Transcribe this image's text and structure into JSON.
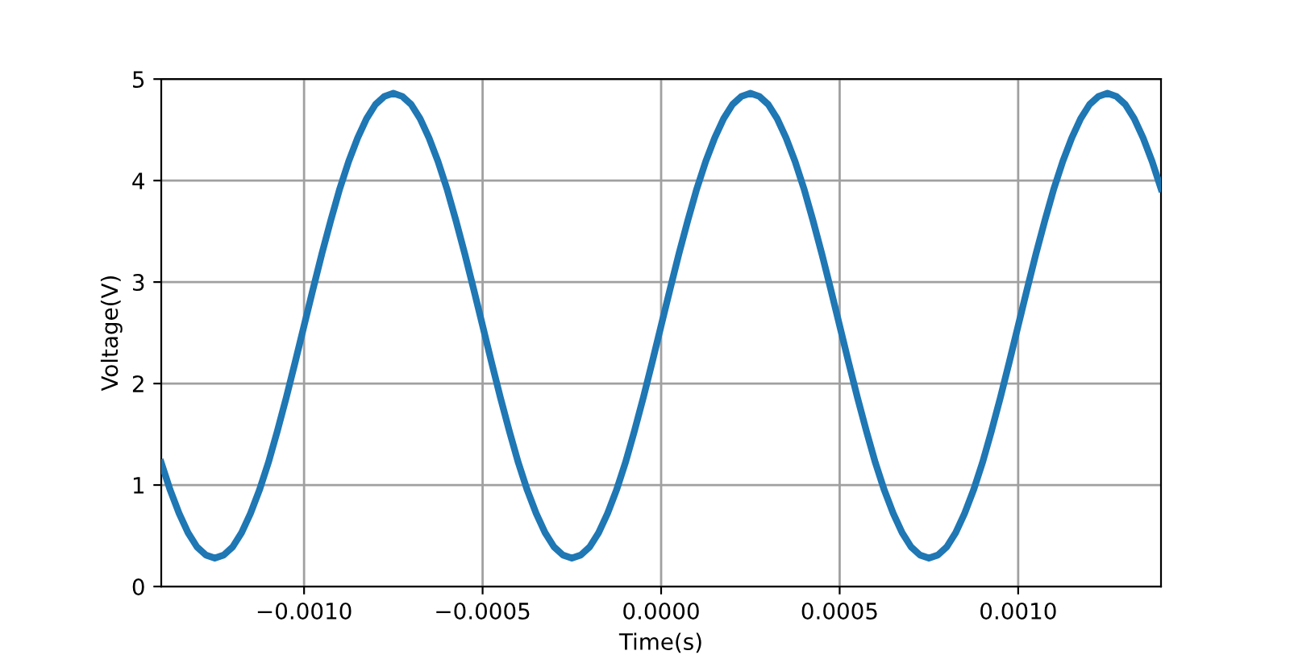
{
  "chart_data": {
    "type": "line",
    "xlabel": "Time(s)",
    "ylabel": "Voltage(V)",
    "xlim": [
      -0.0014,
      0.0014
    ],
    "ylim": [
      0,
      5
    ],
    "xticks": [
      {
        "value": -0.001,
        "label": "−0.0010"
      },
      {
        "value": -0.0005,
        "label": "−0.0005"
      },
      {
        "value": 0,
        "label": "0.0000"
      },
      {
        "value": 0.0005,
        "label": "0.0005"
      },
      {
        "value": 0.001,
        "label": "0.0010"
      }
    ],
    "yticks": [
      0,
      1,
      2,
      3,
      4,
      5
    ],
    "grid": true,
    "line_style": "solid",
    "x": [
      -0.0014,
      -0.001375,
      -0.00135,
      -0.001325,
      -0.0013,
      -0.001275,
      -0.00125,
      -0.001225,
      -0.0012,
      -0.001175,
      -0.00115,
      -0.001125,
      -0.0011,
      -0.001075,
      -0.00105,
      -0.001025,
      -0.001,
      -0.000975,
      -0.00095,
      -0.000925,
      -0.0009,
      -0.000875,
      -0.00085,
      -0.000825,
      -0.0008,
      -0.000775,
      -0.00075,
      -0.000725,
      -0.0007,
      -0.000675,
      -0.00065,
      -0.000625,
      -0.0006,
      -0.000575,
      -0.00055,
      -0.000525,
      -0.0005,
      -0.000475,
      -0.00045,
      -0.000425,
      -0.0004,
      -0.000375,
      -0.00035,
      -0.000325,
      -0.0003,
      -0.000275,
      -0.00025,
      -0.000225,
      -0.0002,
      -0.000175,
      -0.00015,
      -0.000125,
      -0.0001,
      -7.5e-05,
      -5e-05,
      -2.5e-05,
      0,
      2.5e-05,
      5e-05,
      7.5e-05,
      0.0001,
      0.000125,
      0.00015,
      0.000175,
      0.0002,
      0.000225,
      0.00025,
      0.000275,
      0.0003,
      0.000325,
      0.00035,
      0.000375,
      0.0004,
      0.000425,
      0.00045,
      0.000475,
      0.0005,
      0.000525,
      0.00055,
      0.000575,
      0.0006,
      0.000625,
      0.00065,
      0.000675,
      0.0007,
      0.000725,
      0.00075,
      0.000775,
      0.0008,
      0.000825,
      0.00085,
      0.000875,
      0.0009,
      0.000925,
      0.00095,
      0.000975,
      0.001,
      0.001025,
      0.00105,
      0.001075,
      0.0011,
      0.001125,
      0.00115,
      0.001175,
      0.0012,
      0.001225,
      0.00125,
      0.001275,
      0.0013,
      0.001325,
      0.00135,
      0.001375,
      0.0014
    ],
    "series": [
      {
        "color": "#1f77b4",
        "values": [
          1.22,
          0.95,
          0.72,
          0.53,
          0.39,
          0.31,
          0.28,
          0.31,
          0.39,
          0.53,
          0.72,
          0.95,
          1.22,
          1.53,
          1.86,
          2.21,
          2.57,
          2.93,
          3.28,
          3.61,
          3.92,
          4.19,
          4.42,
          4.61,
          4.75,
          4.83,
          4.86,
          4.83,
          4.75,
          4.61,
          4.42,
          4.19,
          3.92,
          3.61,
          3.28,
          2.93,
          2.57,
          2.21,
          1.86,
          1.53,
          1.22,
          0.95,
          0.72,
          0.53,
          0.39,
          0.31,
          0.28,
          0.31,
          0.39,
          0.53,
          0.72,
          0.95,
          1.22,
          1.53,
          1.86,
          2.21,
          2.57,
          2.93,
          3.28,
          3.61,
          3.92,
          4.19,
          4.42,
          4.61,
          4.75,
          4.83,
          4.86,
          4.83,
          4.75,
          4.61,
          4.42,
          4.19,
          3.92,
          3.61,
          3.28,
          2.93,
          2.57,
          2.21,
          1.86,
          1.53,
          1.22,
          0.95,
          0.72,
          0.53,
          0.39,
          0.31,
          0.28,
          0.31,
          0.39,
          0.53,
          0.72,
          0.95,
          1.22,
          1.53,
          1.86,
          2.21,
          2.57,
          2.93,
          3.28,
          3.61,
          3.92,
          4.19,
          4.42,
          4.61,
          4.75,
          4.83,
          4.86,
          4.83,
          4.75,
          4.61,
          4.42,
          4.19,
          3.92
        ]
      }
    ]
  }
}
